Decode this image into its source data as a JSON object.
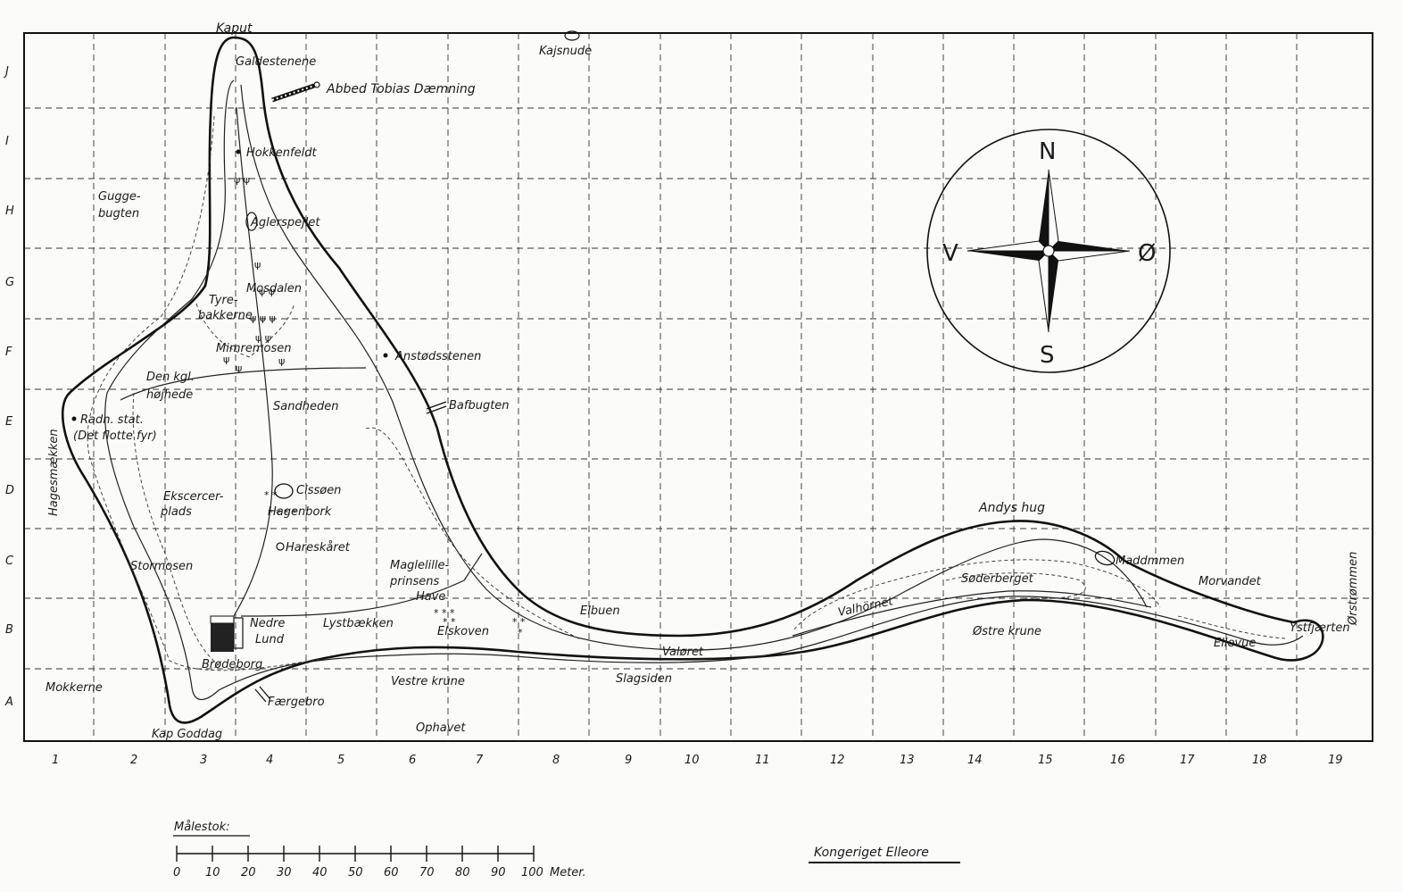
{
  "grid": {
    "columns": [
      "1",
      "2",
      "3",
      "4",
      "5",
      "6",
      "7",
      "8",
      "9",
      "10",
      "11",
      "12",
      "13",
      "14",
      "15",
      "16",
      "17",
      "18",
      "19"
    ],
    "rows": [
      "J",
      "I",
      "H",
      "G",
      "F",
      "E",
      "D",
      "C",
      "B",
      "A"
    ]
  },
  "places": [
    {
      "id": "kaput",
      "text": "Kaput"
    },
    {
      "id": "kajsnude",
      "text": "Kajsnude"
    },
    {
      "id": "galdestenene",
      "text": "Galdestenene"
    },
    {
      "id": "abbed",
      "text": "Abbed Tobias Dæmning"
    },
    {
      "id": "hokkenfeldt",
      "text": "Hokkenfeldt"
    },
    {
      "id": "gugge1",
      "text": "Gugge-"
    },
    {
      "id": "gugge2",
      "text": "bugten"
    },
    {
      "id": "aglerspejlet",
      "text": "Aglerspejlet"
    },
    {
      "id": "mosdalen",
      "text": "Mosdalen"
    },
    {
      "id": "tyre1",
      "text": "Tyre-"
    },
    {
      "id": "tyre2",
      "text": "bakkerne"
    },
    {
      "id": "mimremosen",
      "text": "Mimremosen"
    },
    {
      "id": "anstodsstenen",
      "text": "Anstødsstenen"
    },
    {
      "id": "kgl1",
      "text": "Den kgl."
    },
    {
      "id": "kgl2",
      "text": "højhede"
    },
    {
      "id": "bafbugten",
      "text": "Bafbugten"
    },
    {
      "id": "sandheden",
      "text": "Sandheden"
    },
    {
      "id": "radn1",
      "text": "Radn. stat."
    },
    {
      "id": "radn2",
      "text": "(Det flotte fyr)"
    },
    {
      "id": "hagesmaekken",
      "text": "Hagesmækken"
    },
    {
      "id": "cissoen",
      "text": "Cissøen"
    },
    {
      "id": "ekser1",
      "text": "Ekscercer-"
    },
    {
      "id": "ekser2",
      "text": "plads"
    },
    {
      "id": "hagenbork",
      "text": "Hagenbork"
    },
    {
      "id": "horeskaret",
      "text": "Hareskåret"
    },
    {
      "id": "stormosen",
      "text": "Stormosen"
    },
    {
      "id": "magle1",
      "text": "Maglelille-"
    },
    {
      "id": "magle2",
      "text": "prinsens"
    },
    {
      "id": "magle3",
      "text": "Have"
    },
    {
      "id": "andyshug",
      "text": "Andys hug"
    },
    {
      "id": "maddmmen",
      "text": "Maddmmen"
    },
    {
      "id": "orstrommen",
      "text": "Ørstrømmen"
    },
    {
      "id": "soderberget",
      "text": "Søderberget"
    },
    {
      "id": "morvandet",
      "text": "Morvandet"
    },
    {
      "id": "valhornet",
      "text": "Valhörnet"
    },
    {
      "id": "elbuen",
      "text": "Elbuen"
    },
    {
      "id": "nedre1",
      "text": "Nedre"
    },
    {
      "id": "nedre2",
      "text": "Lund"
    },
    {
      "id": "lystbaek",
      "text": "Lystbækken"
    },
    {
      "id": "elskoven",
      "text": "Elskoven"
    },
    {
      "id": "ostrekrune",
      "text": "Østre krune"
    },
    {
      "id": "ystfjaerten",
      "text": "Ystfjærten"
    },
    {
      "id": "ellevue",
      "text": "Ellevue"
    },
    {
      "id": "valoret",
      "text": "Valøret"
    },
    {
      "id": "brodeborg",
      "text": "Brødeborg"
    },
    {
      "id": "mokkerne",
      "text": "Mokkerne"
    },
    {
      "id": "faergebro",
      "text": "Færgebro"
    },
    {
      "id": "vestrekrune",
      "text": "Vestre krune"
    },
    {
      "id": "slagsiden",
      "text": "Slagsiden"
    },
    {
      "id": "kapgoddag",
      "text": "Kap Goddag"
    },
    {
      "id": "ophavet",
      "text": "Ophavet"
    }
  ],
  "compass": {
    "north": "N",
    "south": "S",
    "west": "V",
    "east": "Ø"
  },
  "scale": {
    "title": "Målestok:",
    "ticks": [
      "0",
      "10",
      "20",
      "30",
      "40",
      "50",
      "60",
      "70",
      "80",
      "90",
      "100"
    ],
    "unit": "Meter."
  },
  "map_title": "Kongeriget Elleore"
}
